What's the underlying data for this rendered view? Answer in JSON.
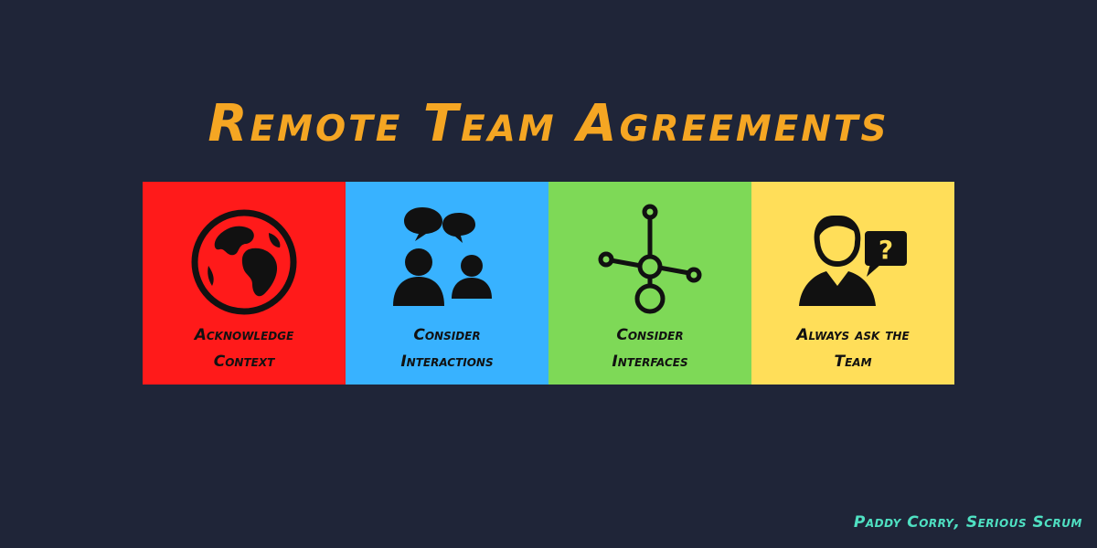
{
  "title": "Remote Team Agreements",
  "colors": {
    "background": "#1f2538",
    "title": "#f5a623",
    "credit": "#4fe0c2"
  },
  "cards": [
    {
      "color": "#ff1a1a",
      "icon": "globe-icon",
      "label_line1": "Acknowledge",
      "label_line2": "Context"
    },
    {
      "color": "#38b2ff",
      "icon": "people-chat-icon",
      "label_line1": "Consider",
      "label_line2": "Interactions"
    },
    {
      "color": "#7ed957",
      "icon": "network-nodes-icon",
      "label_line1": "Consider",
      "label_line2": "Interfaces"
    },
    {
      "color": "#ffde59",
      "icon": "person-question-icon",
      "label_line1": "Always ask the",
      "label_line2": "Team"
    }
  ],
  "credit": "Paddy Corry, Serious Scrum"
}
